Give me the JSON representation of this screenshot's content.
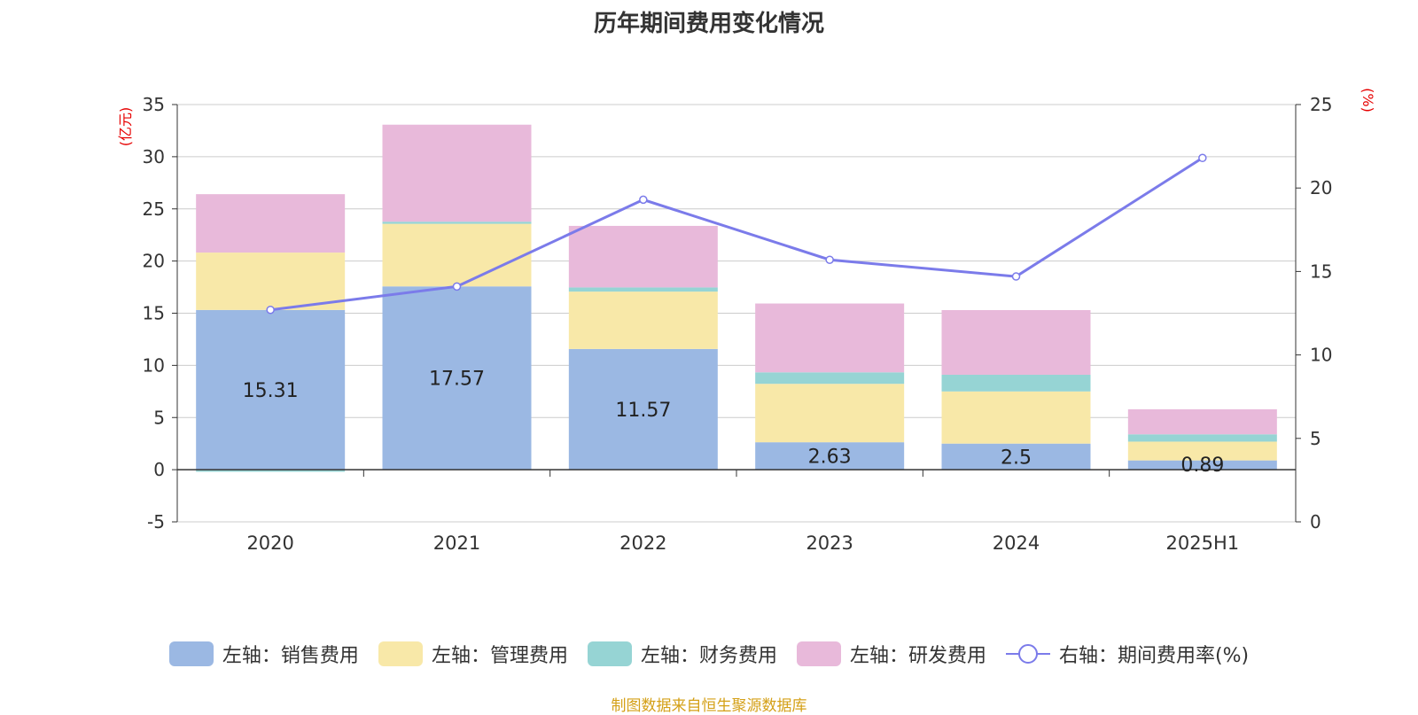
{
  "title": "历年期间费用变化情况",
  "source_note": "制图数据来自恒生聚源数据库",
  "chart_data": {
    "type": "bar",
    "stacked": true,
    "categories": [
      "2020",
      "2021",
      "2022",
      "2023",
      "2024",
      "2025H1"
    ],
    "y_left": {
      "label": "(亿元)",
      "min": -5,
      "max": 35,
      "ticks": [
        -5,
        0,
        5,
        10,
        15,
        20,
        25,
        30,
        35
      ]
    },
    "y_right": {
      "label": "(%)",
      "min": 0,
      "max": 25,
      "ticks": [
        0,
        5,
        10,
        15,
        20,
        25
      ]
    },
    "series": [
      {
        "name": "左轴：销售费用",
        "axis": "left",
        "type": "bar",
        "color": "#9bb8e3",
        "values": [
          15.31,
          17.57,
          11.57,
          2.63,
          2.5,
          0.89
        ],
        "data_labels": [
          "15.31",
          "17.57",
          "11.57",
          "2.63",
          "2.5",
          "0.89"
        ]
      },
      {
        "name": "左轴：管理费用",
        "axis": "left",
        "type": "bar",
        "color": "#f8e8a8",
        "values": [
          5.5,
          6.0,
          5.5,
          5.6,
          5.0,
          1.8
        ]
      },
      {
        "name": "左轴：财务费用",
        "axis": "left",
        "type": "bar",
        "color": "#96d4d4",
        "values": [
          -0.2,
          0.2,
          0.4,
          1.1,
          1.6,
          0.7
        ]
      },
      {
        "name": "左轴：研发费用",
        "axis": "left",
        "type": "bar",
        "color": "#e8b9da",
        "values": [
          5.6,
          9.3,
          5.9,
          6.6,
          6.2,
          2.4
        ]
      },
      {
        "name": "右轴：期间费用率(%)",
        "axis": "right",
        "type": "line",
        "color": "#7b7bea",
        "values": [
          12.7,
          14.1,
          19.3,
          15.7,
          14.7,
          21.8
        ]
      }
    ],
    "grid": true,
    "legend_position": "bottom"
  },
  "colors": {
    "axis_label": "#e60000",
    "grid": "#cccccc",
    "axis": "#333333"
  }
}
